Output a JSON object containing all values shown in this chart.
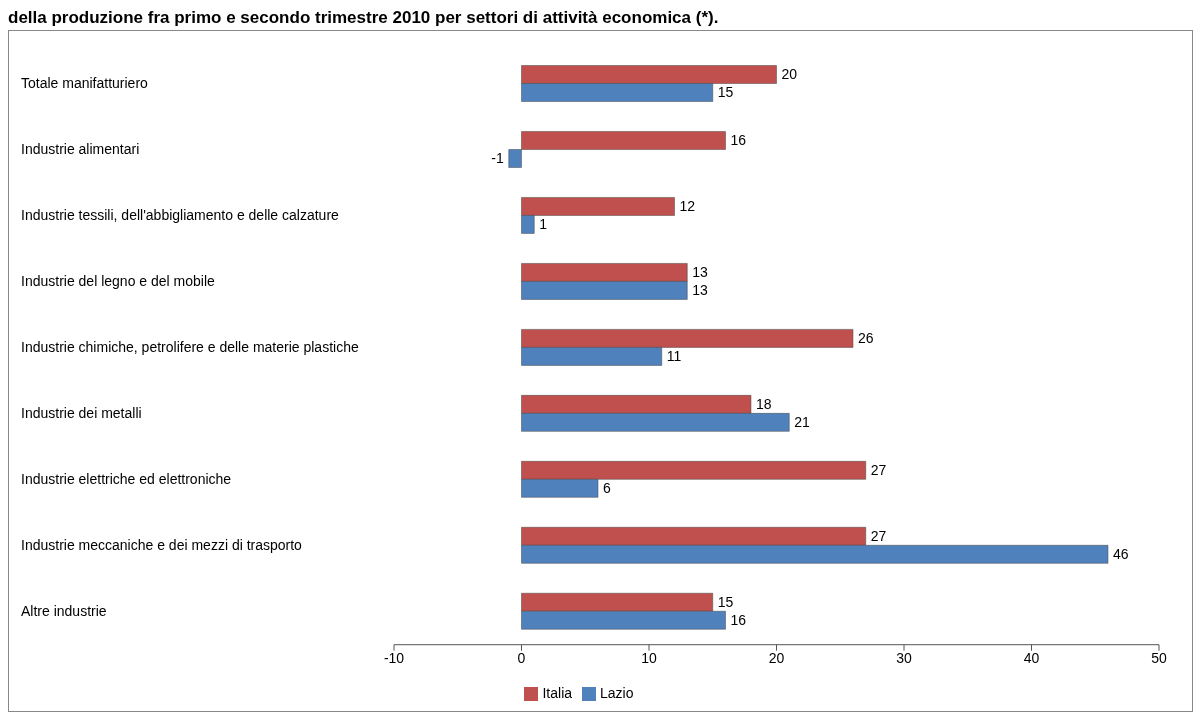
{
  "chart_data": {
    "type": "bar",
    "orientation": "horizontal",
    "title": "della produzione fra primo e secondo trimestre 2010 per settori di attività economica (*).",
    "categories": [
      "Totale manifatturiero",
      "Industrie alimentari",
      "Industrie tessili, dell'abbigliamento  e delle calzature",
      "Industrie del legno e del mobile",
      "Industrie chimiche, petrolifere e delle materie plastiche",
      "Industrie dei metalli",
      "Industrie elettriche ed elettroniche",
      "Industrie meccaniche e dei mezzi di trasporto",
      "Altre industrie"
    ],
    "series": [
      {
        "name": "Italia",
        "color": "#c0504d",
        "values": [
          20,
          16,
          12,
          13,
          26,
          18,
          27,
          27,
          15
        ]
      },
      {
        "name": "Lazio",
        "color": "#4f81bd",
        "values": [
          15,
          -1,
          1,
          13,
          11,
          21,
          6,
          46,
          16
        ]
      }
    ],
    "xlim": [
      -10,
      50
    ],
    "xticks": [
      -10,
      0,
      10,
      20,
      30,
      40,
      50
    ],
    "data_labels": true,
    "legend": "bottom",
    "grid": false
  }
}
